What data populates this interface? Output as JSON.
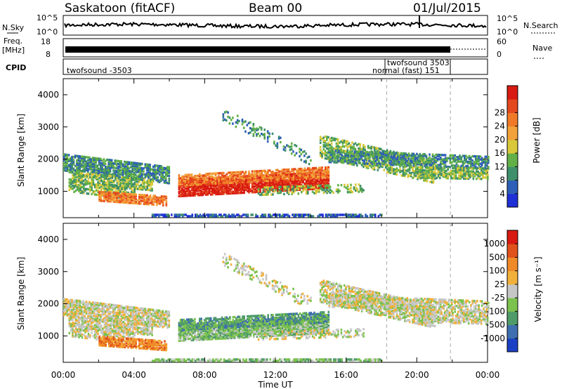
{
  "header": {
    "station": "Saskatoon (fitACF)",
    "beam": "Beam 00",
    "date": "01/Jul/2015"
  },
  "top_strips": {
    "nsky_label": "N.Sky",
    "nsearch_label": "N.Search",
    "freq_label_line1": "Freq.",
    "freq_label_line2": "[MHz]",
    "nave_label": "Nave",
    "cpid_label": "CPID",
    "noise_left_ticks": [
      "10^5",
      "10^0"
    ],
    "noise_right_ticks": [
      "10^5",
      "10^0"
    ],
    "freq_left_ticks": [
      "18",
      "8"
    ],
    "freq_right_ticks": [
      "60",
      "0"
    ],
    "cpid_labels": [
      "twofsound -3503",
      "twofsound 3503",
      "normal (fast) 151"
    ]
  },
  "chart_data": [
    {
      "type": "heatmap",
      "panel": "power",
      "ylabel": "Slant Range [km]",
      "xlabel": "",
      "x_range_hours": [
        0,
        24
      ],
      "ylim": [
        180,
        4500
      ],
      "y_ticks": [
        1000,
        2000,
        3000,
        4000
      ],
      "colorbar_label": "Power [dB]",
      "colorbar_ticks": [
        "4",
        "8",
        "12",
        "16",
        "20",
        "24",
        "28"
      ],
      "colorbar_colors": [
        "#1f2fd6",
        "#2e5fb8",
        "#3f8f6a",
        "#62b047",
        "#d8c83a",
        "#f2a23a",
        "#f07a28",
        "#e4481e",
        "#d81a12"
      ],
      "dashed_lines_hours": [
        18.3,
        21.9
      ]
    },
    {
      "type": "heatmap",
      "panel": "velocity",
      "ylabel": "Slant Range [km]",
      "xlabel": "Time UT",
      "x_range_hours": [
        0,
        24
      ],
      "ylim": [
        180,
        4500
      ],
      "y_ticks": [
        1000,
        2000,
        3000,
        4000
      ],
      "x_tick_labels": [
        "00:00",
        "04:00",
        "08:00",
        "12:00",
        "16:00",
        "20:00",
        "00:00"
      ],
      "colorbar_label": "Velocity [m s⁻¹]",
      "colorbar_ticks": [
        "1000",
        "500",
        "100",
        "25",
        "-25",
        "-100",
        "-500",
        "-1000"
      ],
      "colorbar_colors": [
        "#1b3fc4",
        "#3f6fb0",
        "#4f9b6a",
        "#7cc24e",
        "#c6c6c6",
        "#f0b03a",
        "#f08a28",
        "#e0521c",
        "#d81a12"
      ],
      "dashed_lines_hours": [
        18.3,
        21.9
      ]
    }
  ]
}
